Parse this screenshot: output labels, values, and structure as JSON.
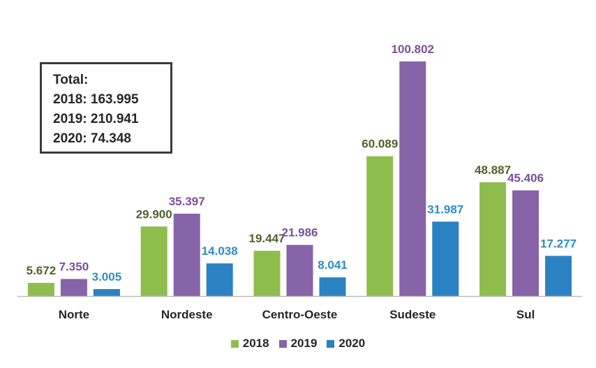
{
  "chart_data": {
    "type": "bar",
    "categories": [
      "Norte",
      "Nordeste",
      "Centro-Oeste",
      "Sudeste",
      "Sul"
    ],
    "series": [
      {
        "name": "2018",
        "color": "#8fbd4d",
        "label_color": "#4f6228",
        "values": [
          5672,
          29900,
          19447,
          60089,
          48887
        ],
        "labels": [
          "5.672",
          "29.900",
          "19.447",
          "60.089",
          "48.887"
        ]
      },
      {
        "name": "2019",
        "color": "#8763a7",
        "label_color": "#7a4f9a",
        "values": [
          7350,
          35397,
          21986,
          100802,
          45406
        ],
        "labels": [
          "7.350",
          "35.397",
          "21.986",
          "100.802",
          "45.406"
        ]
      },
      {
        "name": "2020",
        "color": "#2a82c2",
        "label_color": "#2d8bc9",
        "values": [
          3005,
          14038,
          8041,
          31987,
          17277
        ],
        "labels": [
          "3.005",
          "14.038",
          "8.041",
          "31.987",
          "17.277"
        ]
      }
    ],
    "ylim": [
      0,
      110000
    ],
    "grid": false,
    "legend_position": "bottom"
  },
  "total_box": {
    "title": "Total:",
    "lines": [
      "2018: 163.995",
      "2019: 210.941",
      "2020: 74.348"
    ]
  }
}
